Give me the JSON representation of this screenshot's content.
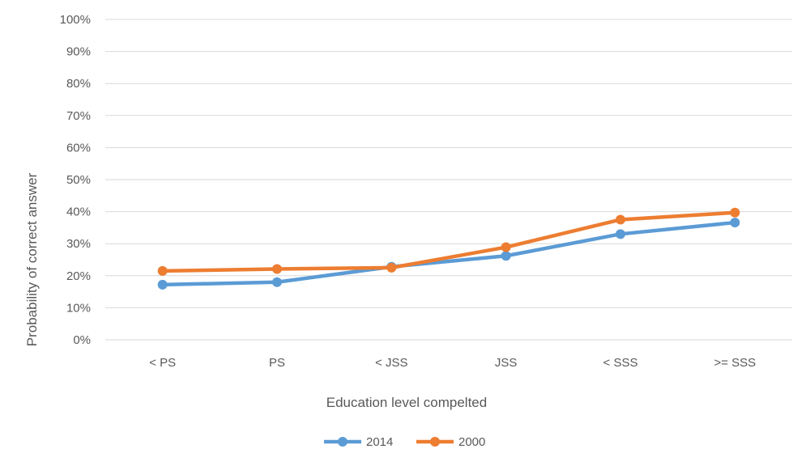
{
  "chart_data": {
    "type": "line",
    "title": "",
    "xlabel": "Education level compelted",
    "ylabel": "Probability of correct answer",
    "categories": [
      "< PS",
      "PS",
      "< JSS",
      "JSS",
      "< SSS",
      ">= SSS"
    ],
    "yticks": [
      "0%",
      "10%",
      "20%",
      "30%",
      "40%",
      "50%",
      "60%",
      "70%",
      "80%",
      "90%",
      "100%"
    ],
    "ylim": [
      0,
      1
    ],
    "grid": true,
    "legend_position": "bottom",
    "series": [
      {
        "name": "2014",
        "color": "#5b9bd5",
        "values": [
          0.172,
          0.18,
          0.228,
          0.262,
          0.33,
          0.366
        ]
      },
      {
        "name": "2000",
        "color": "#ed7d31",
        "values": [
          0.215,
          0.221,
          0.225,
          0.289,
          0.375,
          0.397
        ]
      }
    ]
  }
}
